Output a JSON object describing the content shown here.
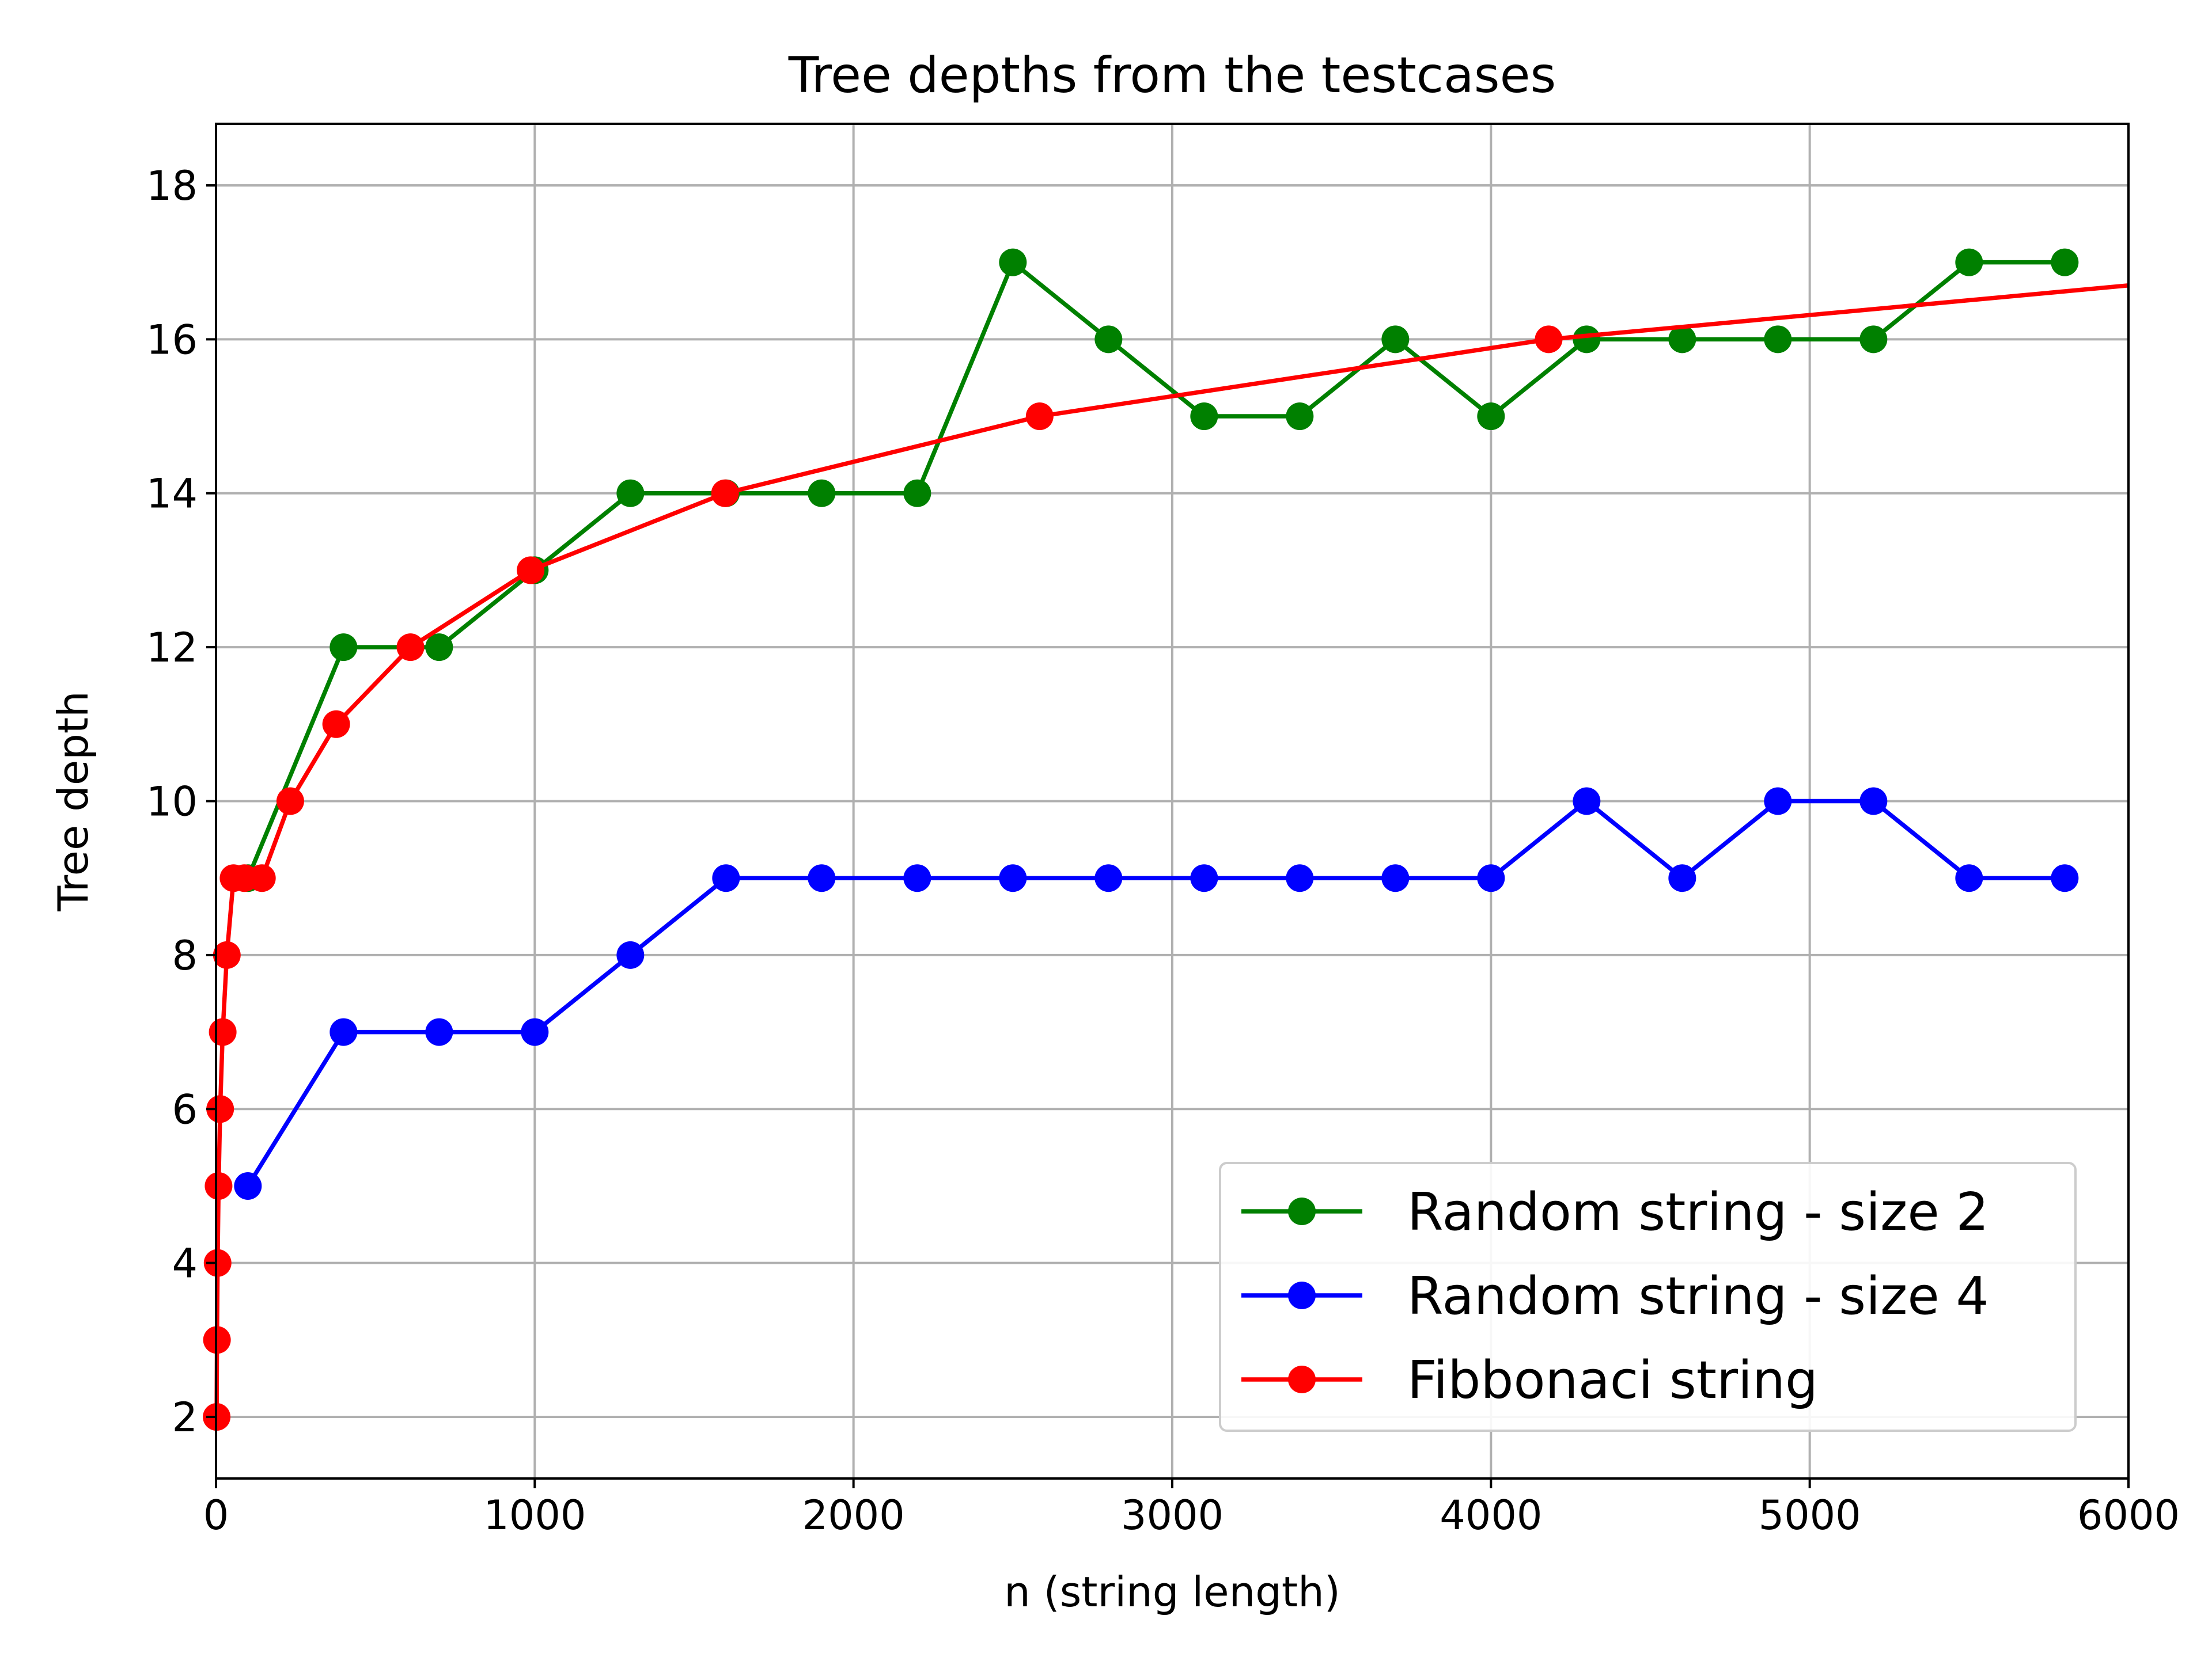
{
  "chart_data": {
    "type": "line",
    "title": "Tree depths from the testcases",
    "xlabel": "n (string length)",
    "ylabel": "Tree depth",
    "xlim": [
      0,
      6000
    ],
    "ylim": [
      1.2,
      18.8
    ],
    "xticks": [
      0,
      1000,
      2000,
      3000,
      4000,
      5000,
      6000
    ],
    "yticks": [
      2,
      4,
      6,
      8,
      10,
      12,
      14,
      16,
      18
    ],
    "grid": true,
    "legend_position": "lower-right",
    "series": [
      {
        "name": "Random string - size 2",
        "color": "#008000",
        "marker": "circle",
        "x": [
          100,
          400,
          700,
          1000,
          1300,
          1600,
          1900,
          2200,
          2500,
          2800,
          3100,
          3400,
          3700,
          4000,
          4300,
          4600,
          4900,
          5200,
          5500,
          5800
        ],
        "y": [
          9,
          12,
          12,
          13,
          14,
          14,
          14,
          14,
          17,
          16,
          15,
          15,
          16,
          15,
          16,
          16,
          16,
          16,
          17,
          17
        ]
      },
      {
        "name": "Random string - size 4",
        "color": "#0000ff",
        "marker": "circle",
        "x": [
          100,
          400,
          700,
          1000,
          1300,
          1600,
          1900,
          2200,
          2500,
          2800,
          3100,
          3400,
          3700,
          4000,
          4300,
          4600,
          4900,
          5200,
          5500,
          5800
        ],
        "y": [
          5,
          7,
          7,
          7,
          8,
          9,
          9,
          9,
          9,
          9,
          9,
          9,
          9,
          9,
          10,
          9,
          10,
          10,
          9,
          9
        ]
      },
      {
        "name": "Fibbonaci string",
        "color": "#ff0000",
        "marker": "circle",
        "x": [
          2,
          3,
          5,
          8,
          13,
          21,
          34,
          55,
          89,
          144,
          233,
          377,
          610,
          987,
          1597,
          2584,
          4181
        ],
        "y": [
          2,
          3,
          4,
          5,
          6,
          7,
          8,
          9,
          9,
          9,
          10,
          11,
          12,
          13,
          14,
          15,
          16
        ],
        "trend": {
          "x": [
            4181,
            6000
          ],
          "y": [
            16,
            16.7
          ]
        }
      }
    ]
  }
}
